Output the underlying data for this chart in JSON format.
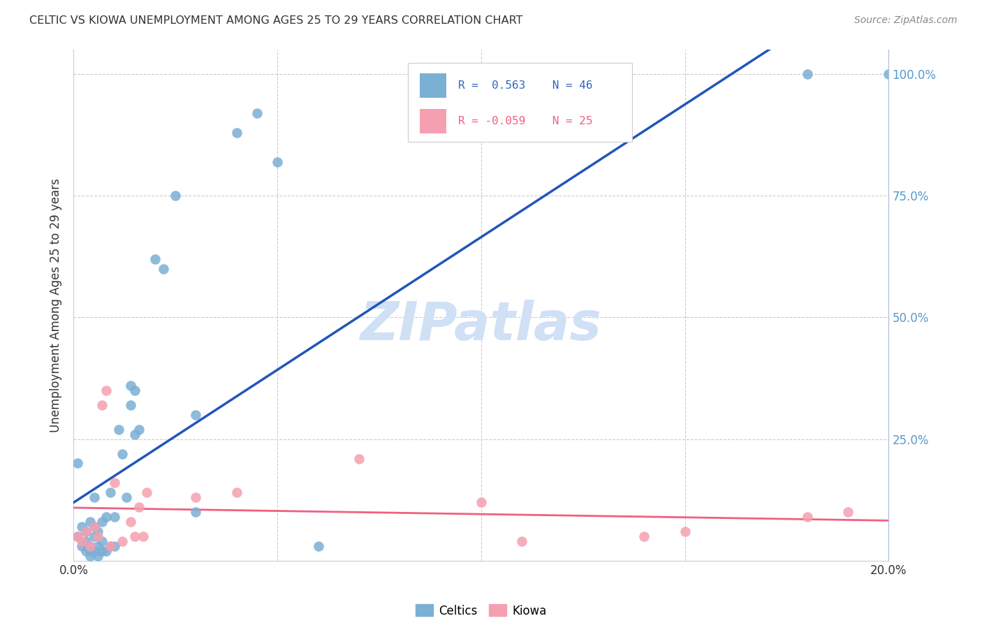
{
  "title": "CELTIC VS KIOWA UNEMPLOYMENT AMONG AGES 25 TO 29 YEARS CORRELATION CHART",
  "source": "Source: ZipAtlas.com",
  "ylabel": "Unemployment Among Ages 25 to 29 years",
  "celtics_color": "#7BAFD4",
  "kiowa_color": "#F5A0B0",
  "trendline_celtics_color": "#2255BB",
  "trendline_kiowa_color": "#F06080",
  "right_axis_color": "#5599CC",
  "legend_r_celtics": "0.563",
  "legend_n_celtics": "46",
  "legend_r_kiowa": "-0.059",
  "legend_n_kiowa": "25",
  "watermark": "ZIPatlas",
  "watermark_color": "#D0E0F5",
  "celtics_x": [
    0.001,
    0.001,
    0.002,
    0.002,
    0.003,
    0.003,
    0.003,
    0.004,
    0.004,
    0.004,
    0.004,
    0.005,
    0.005,
    0.005,
    0.005,
    0.006,
    0.006,
    0.006,
    0.007,
    0.007,
    0.007,
    0.008,
    0.008,
    0.009,
    0.009,
    0.01,
    0.01,
    0.011,
    0.012,
    0.013,
    0.014,
    0.014,
    0.015,
    0.015,
    0.016,
    0.02,
    0.022,
    0.025,
    0.03,
    0.03,
    0.04,
    0.045,
    0.05,
    0.06,
    0.18,
    0.2
  ],
  "celtics_y": [
    0.05,
    0.2,
    0.03,
    0.07,
    0.02,
    0.04,
    0.06,
    0.01,
    0.02,
    0.03,
    0.08,
    0.02,
    0.05,
    0.07,
    0.13,
    0.01,
    0.03,
    0.06,
    0.02,
    0.04,
    0.08,
    0.02,
    0.09,
    0.03,
    0.14,
    0.03,
    0.09,
    0.27,
    0.22,
    0.13,
    0.32,
    0.36,
    0.35,
    0.26,
    0.27,
    0.62,
    0.6,
    0.75,
    0.1,
    0.3,
    0.88,
    0.92,
    0.82,
    0.03,
    1.0,
    1.0
  ],
  "kiowa_x": [
    0.001,
    0.002,
    0.003,
    0.004,
    0.005,
    0.006,
    0.007,
    0.008,
    0.009,
    0.01,
    0.012,
    0.014,
    0.015,
    0.016,
    0.017,
    0.018,
    0.03,
    0.04,
    0.07,
    0.1,
    0.11,
    0.14,
    0.15,
    0.18,
    0.19
  ],
  "kiowa_y": [
    0.05,
    0.04,
    0.06,
    0.03,
    0.07,
    0.05,
    0.32,
    0.35,
    0.03,
    0.16,
    0.04,
    0.08,
    0.05,
    0.11,
    0.05,
    0.14,
    0.13,
    0.14,
    0.21,
    0.12,
    0.04,
    0.05,
    0.06,
    0.09,
    0.1
  ],
  "xmin": 0.0,
  "xmax": 0.2,
  "ymin": 0.0,
  "ymax": 1.05,
  "yticks": [
    0.0,
    0.25,
    0.5,
    0.75,
    1.0
  ],
  "ytick_labels_right": [
    "",
    "25.0%",
    "50.0%",
    "75.0%",
    "100.0%"
  ],
  "xtick_positions": [
    0.0,
    0.05,
    0.1,
    0.15,
    0.2
  ],
  "xtick_labels": [
    "0.0%",
    "",
    "",
    "",
    "20.0%"
  ]
}
